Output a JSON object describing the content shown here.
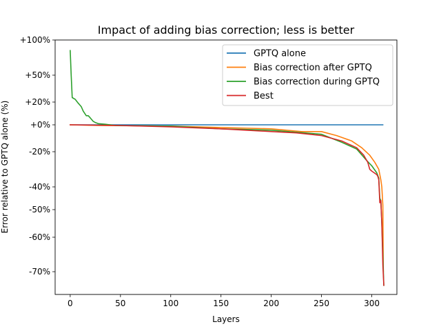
{
  "chart_data": {
    "type": "line",
    "title": "Impact of adding bias correction; less is better",
    "xlabel": "Layers",
    "ylabel": "Error relative to GPTQ alone (%)",
    "xlim": [
      -15,
      325
    ],
    "xticks": [
      0,
      50,
      100,
      150,
      200,
      250,
      300
    ],
    "xtick_labels": [
      "0",
      "50",
      "100",
      "150",
      "200",
      "250",
      "300"
    ],
    "ytick_labels": [
      "+100%",
      "+50%",
      "+20%",
      "+0%",
      "-20%",
      "-40%",
      "-50%",
      "-60%",
      "-70%"
    ],
    "grid": false,
    "legend_position": "top-right",
    "series": [
      {
        "name": "GPTQ alone",
        "color": "#1f77b4",
        "points": [
          [
            0,
            "+0%"
          ],
          [
            311,
            "+0%"
          ]
        ]
      },
      {
        "name": "Bias correction after GPTQ",
        "color": "#ff7f0e",
        "points": [
          [
            0,
            "+0%"
          ],
          [
            30,
            "-0.5%"
          ],
          [
            100,
            "-1%"
          ],
          [
            150,
            "-2%"
          ],
          [
            200,
            "-3%"
          ],
          [
            230,
            "-5%"
          ],
          [
            250,
            "-5%"
          ],
          [
            265,
            "-8%"
          ],
          [
            280,
            "-12%"
          ],
          [
            290,
            "-17%"
          ],
          [
            298,
            "-22%"
          ],
          [
            303,
            "-26%"
          ],
          [
            307,
            "-30%"
          ],
          [
            309,
            "-36%"
          ],
          [
            310,
            "-40%"
          ],
          [
            311,
            "-48%"
          ],
          [
            311.5,
            "-70%"
          ]
        ]
      },
      {
        "name": "Bias correction during GPTQ",
        "color": "#2ca02c",
        "points": [
          [
            0,
            "+85%"
          ],
          [
            1,
            "+50%"
          ],
          [
            2,
            "+25%"
          ],
          [
            5,
            "+23%"
          ],
          [
            8,
            "+19%"
          ],
          [
            11,
            "+16%"
          ],
          [
            13,
            "+12%"
          ],
          [
            16,
            "+8%"
          ],
          [
            18,
            "+8%"
          ],
          [
            20,
            "+6%"
          ],
          [
            23,
            "+3%"
          ],
          [
            25,
            "+2%"
          ],
          [
            28,
            "+1%"
          ],
          [
            35,
            "+0.5%"
          ],
          [
            45,
            "-0.5%"
          ],
          [
            100,
            "-1%"
          ],
          [
            150,
            "-3%"
          ],
          [
            200,
            "-4%"
          ],
          [
            250,
            "-7%"
          ],
          [
            270,
            "-13%"
          ],
          [
            285,
            "-18%"
          ],
          [
            295,
            "-25%"
          ],
          [
            300,
            "-28%"
          ],
          [
            305,
            "-32%"
          ],
          [
            307,
            "-35%"
          ],
          [
            308,
            "-45%"
          ],
          [
            309,
            "-46%"
          ],
          [
            310,
            "-55%"
          ],
          [
            311,
            "-65%"
          ],
          [
            312,
            "-76%"
          ]
        ]
      },
      {
        "name": "Best",
        "color": "#d62728",
        "points": [
          [
            0,
            "+0%"
          ],
          [
            50,
            "-0.5%"
          ],
          [
            100,
            "-1.5%"
          ],
          [
            150,
            "-3%"
          ],
          [
            200,
            "-5%"
          ],
          [
            225,
            "-6%"
          ],
          [
            250,
            "-8%"
          ],
          [
            270,
            "-12%"
          ],
          [
            285,
            "-17%"
          ],
          [
            292,
            "-22%"
          ],
          [
            296,
            "-26%"
          ],
          [
            298,
            "-30%"
          ],
          [
            300,
            "-31%"
          ],
          [
            305,
            "-33%"
          ],
          [
            306,
            "-34%"
          ],
          [
            307,
            "-36%"
          ],
          [
            308,
            "-47%"
          ],
          [
            309,
            "-46%"
          ],
          [
            310,
            "-55%"
          ],
          [
            311,
            "-68%"
          ],
          [
            312,
            "-76%"
          ]
        ]
      }
    ]
  }
}
